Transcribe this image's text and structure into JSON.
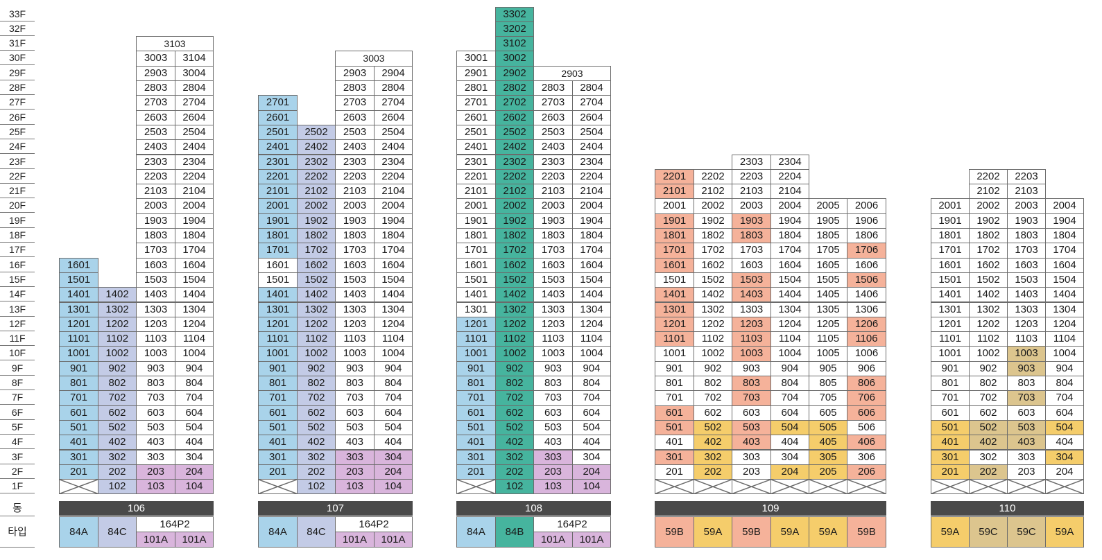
{
  "labels": {
    "dong": "동",
    "type": "타입"
  },
  "floor_labels": [
    "33F",
    "32F",
    "31F",
    "30F",
    "29F",
    "28F",
    "27F",
    "26F",
    "25F",
    "24F",
    "23F",
    "22F",
    "21F",
    "20F",
    "19F",
    "18F",
    "17F",
    "16F",
    "15F",
    "14F",
    "13F",
    "12F",
    "11F",
    "10F",
    "9F",
    "8F",
    "7F",
    "6F",
    "5F",
    "4F",
    "3F",
    "2F",
    "1F"
  ],
  "colors": {
    "blue": "#a9d3ea",
    "lavender": "#c3cbe6",
    "purple": "#d9b5dc",
    "teal": "#46b49e",
    "salmon": "#f5b29a",
    "yellow": "#f5cd6b",
    "khaki": "#dcc58e",
    "white": "#ffffff",
    "bar": "#4a4a4a"
  },
  "buildings": [
    {
      "name": "106",
      "columns": [
        {
          "type": "84A",
          "color": "blue",
          "suffix": "01",
          "top": 16,
          "bottom": 2,
          "first_floor": "empty",
          "overrides": {}
        },
        {
          "type": "84C",
          "color": "lavender",
          "suffix": "02",
          "top": 14,
          "bottom": 1,
          "first_floor": "unit",
          "overrides": {}
        },
        {
          "type": "101A",
          "color": "white",
          "suffix": "03",
          "top": 30,
          "bottom": 1,
          "first_floor": "unit",
          "overrides": {
            "2": "purple",
            "1": "purple"
          }
        },
        {
          "type": "101A",
          "color": "white",
          "suffix": "04",
          "top": 30,
          "bottom": 1,
          "first_floor": "unit",
          "overrides": {
            "2": "purple",
            "1": "purple"
          },
          "label_offset": 1
        }
      ],
      "spans": [
        {
          "floor": 31,
          "from": 2,
          "to": 3,
          "label": "3103"
        }
      ],
      "type_group": {
        "from": 2,
        "to": 3,
        "label": "164P2"
      }
    },
    {
      "name": "107",
      "columns": [
        {
          "type": "84A",
          "color": "blue",
          "suffix": "01",
          "top": 27,
          "bottom": 2,
          "first_floor": "empty",
          "overrides": {
            "16": "white",
            "15": "white"
          }
        },
        {
          "type": "84C",
          "color": "lavender",
          "suffix": "02",
          "top": 25,
          "bottom": 1,
          "first_floor": "unit",
          "overrides": {}
        },
        {
          "type": "101A",
          "color": "white",
          "suffix": "03",
          "top": 29,
          "bottom": 1,
          "first_floor": "unit",
          "overrides": {
            "3": "purple",
            "2": "purple",
            "1": "purple"
          }
        },
        {
          "type": "101A",
          "color": "white",
          "suffix": "04",
          "top": 29,
          "bottom": 1,
          "first_floor": "unit",
          "overrides": {
            "3": "purple",
            "2": "purple",
            "1": "purple"
          }
        }
      ],
      "spans": [
        {
          "floor": 30,
          "from": 2,
          "to": 3,
          "label": "3003"
        }
      ],
      "type_group": {
        "from": 2,
        "to": 3,
        "label": "164P2"
      }
    },
    {
      "name": "108",
      "columns": [
        {
          "type": "84A",
          "color": "white",
          "suffix": "01",
          "top": 30,
          "bottom": 2,
          "first_floor": "empty",
          "overrides": {
            "12": "blue",
            "11": "blue",
            "10": "blue",
            "9": "blue",
            "8": "blue",
            "7": "blue",
            "6": "blue",
            "5": "blue",
            "4": "blue",
            "3": "blue",
            "2": "blue"
          }
        },
        {
          "type": "84B",
          "color": "teal",
          "suffix": "02",
          "top": 33,
          "bottom": 1,
          "first_floor": "unit",
          "overrides": {},
          "label_map": {
            "33": "3302",
            "32": "3202",
            "31": "3102",
            "30": "3002"
          }
        },
        {
          "type": "101A",
          "color": "white",
          "suffix": "03",
          "top": 28,
          "bottom": 1,
          "first_floor": "unit",
          "overrides": {
            "3": "purple",
            "2": "purple",
            "1": "purple"
          }
        },
        {
          "type": "101A",
          "color": "white",
          "suffix": "04",
          "top": 28,
          "bottom": 1,
          "first_floor": "unit",
          "overrides": {
            "2": "purple",
            "1": "purple"
          }
        }
      ],
      "spans": [
        {
          "floor": 29,
          "from": 2,
          "to": 3,
          "label": "2903"
        }
      ],
      "type_group": {
        "from": 2,
        "to": 3,
        "label": "164P2"
      }
    },
    {
      "name": "109",
      "columns": [
        {
          "type": "59B",
          "color": "white",
          "suffix": "01",
          "top": 22,
          "bottom": 2,
          "first_floor": "empty",
          "overrides": {
            "22": "salmon",
            "21": "salmon",
            "19": "salmon",
            "18": "salmon",
            "17": "salmon",
            "16": "salmon",
            "14": "salmon",
            "13": "salmon",
            "12": "salmon",
            "11": "salmon",
            "6": "salmon",
            "5": "salmon",
            "3": "salmon"
          }
        },
        {
          "type": "59A",
          "color": "white",
          "suffix": "02",
          "top": 22,
          "bottom": 2,
          "first_floor": "empty",
          "overrides": {
            "5": "yellow",
            "4": "yellow",
            "3": "yellow",
            "2": "yellow"
          }
        },
        {
          "type": "59B",
          "color": "white",
          "suffix": "03",
          "top": 23,
          "bottom": 2,
          "first_floor": "empty",
          "overrides": {
            "19": "salmon",
            "18": "salmon",
            "15": "salmon",
            "14": "salmon",
            "12": "salmon",
            "11": "salmon",
            "10": "salmon",
            "8": "salmon",
            "7": "salmon",
            "5": "salmon",
            "4": "salmon"
          }
        },
        {
          "type": "59A",
          "color": "white",
          "suffix": "04",
          "top": 23,
          "bottom": 2,
          "first_floor": "empty",
          "overrides": {
            "5": "yellow",
            "2": "yellow"
          }
        },
        {
          "type": "59A",
          "color": "white",
          "suffix": "05",
          "top": 20,
          "bottom": 2,
          "first_floor": "empty",
          "overrides": {
            "5": "yellow",
            "4": "yellow",
            "3": "yellow",
            "2": "yellow"
          }
        },
        {
          "type": "59B",
          "color": "white",
          "suffix": "06",
          "top": 20,
          "bottom": 2,
          "first_floor": "empty",
          "overrides": {
            "17": "salmon",
            "15": "salmon",
            "12": "salmon",
            "11": "salmon",
            "8": "salmon",
            "7": "salmon",
            "6": "salmon",
            "4": "salmon",
            "2": "salmon"
          }
        }
      ],
      "spans": [],
      "type_group": null
    },
    {
      "name": "110",
      "columns": [
        {
          "type": "59A",
          "color": "white",
          "suffix": "01",
          "top": 20,
          "bottom": 2,
          "first_floor": "empty",
          "overrides": {
            "5": "yellow",
            "4": "yellow",
            "3": "yellow",
            "2": "yellow"
          }
        },
        {
          "type": "59C",
          "color": "white",
          "suffix": "02",
          "top": 22,
          "bottom": 2,
          "first_floor": "empty",
          "overrides": {
            "5": "khaki",
            "4": "khaki",
            "2": "khaki"
          }
        },
        {
          "type": "59C",
          "color": "white",
          "suffix": "03",
          "top": 22,
          "bottom": 2,
          "first_floor": "empty",
          "overrides": {
            "10": "khaki",
            "9": "khaki",
            "7": "khaki",
            "5": "khaki",
            "4": "khaki"
          }
        },
        {
          "type": "59A",
          "color": "white",
          "suffix": "04",
          "top": 20,
          "bottom": 2,
          "first_floor": "empty",
          "overrides": {
            "5": "yellow",
            "3": "yellow"
          }
        }
      ],
      "spans": [],
      "type_group": null
    }
  ]
}
